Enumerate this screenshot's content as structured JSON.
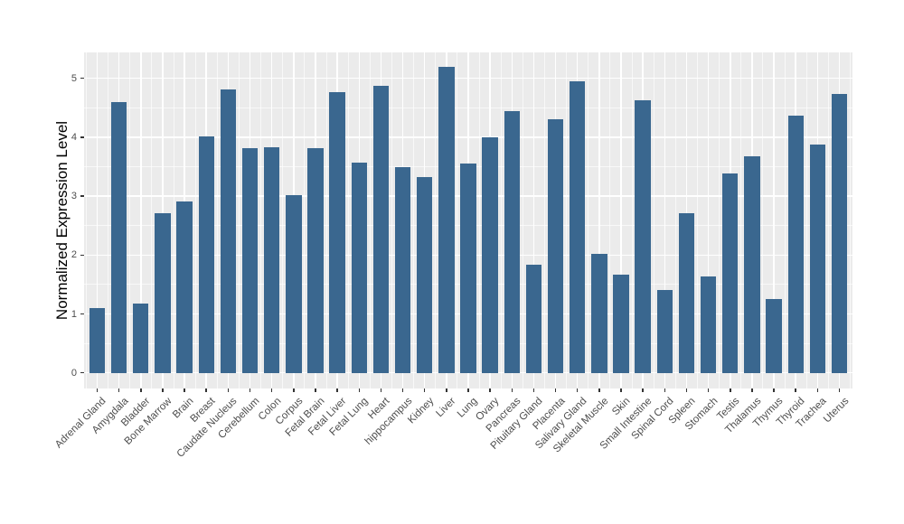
{
  "chart_data": {
    "type": "bar",
    "title": "",
    "xlabel": "",
    "ylabel": "Normalized Expression Level",
    "categories": [
      "Adrenal Gland",
      "Amygdala",
      "Bladder",
      "Bone Marrow",
      "Brain",
      "Breast",
      "Caudate Nucleus",
      "Cerebellum",
      "Colon",
      "Corpus",
      "Fetal Brain",
      "Fetal Liver",
      "Fetal Lung",
      "Heart",
      "hippocampus",
      "Kidney",
      "Liver",
      "Lung",
      "Ovary",
      "Pancreas",
      "Pituitary Gland",
      "Placenta",
      "Salivary Gland",
      "Skeletal Muscle",
      "Skin",
      "Small Intestine",
      "Spinal Cord",
      "Spleen",
      "Stomach",
      "Testis",
      "Thalamus",
      "Thymus",
      "Thyroid",
      "Trachea",
      "Uterus"
    ],
    "values": [
      1.1,
      4.6,
      1.18,
      2.71,
      2.91,
      4.01,
      4.81,
      3.82,
      3.83,
      3.01,
      3.82,
      4.77,
      3.57,
      4.88,
      3.5,
      3.33,
      5.2,
      3.56,
      4.0,
      4.45,
      1.83,
      4.31,
      4.95,
      2.02,
      1.66,
      4.63,
      1.4,
      2.71,
      1.63,
      3.39,
      3.68,
      1.25,
      4.37,
      3.88,
      4.73
    ],
    "ylim": [
      0,
      5.44
    ],
    "yticks": [
      0,
      1,
      2,
      3,
      4,
      5
    ],
    "y_minor_step": 0.5,
    "grid": "on",
    "legend": "none",
    "colors": {
      "bar": "#3a678f",
      "panel_bg": "#ebebeb",
      "grid_major": "#ffffff",
      "grid_minor": "rgba(255,255,255,0.65)",
      "axis_text": "#4d4d4d",
      "axis_title": "#000000",
      "tick": "#333333",
      "canvas_bg": "#ffffff"
    }
  }
}
